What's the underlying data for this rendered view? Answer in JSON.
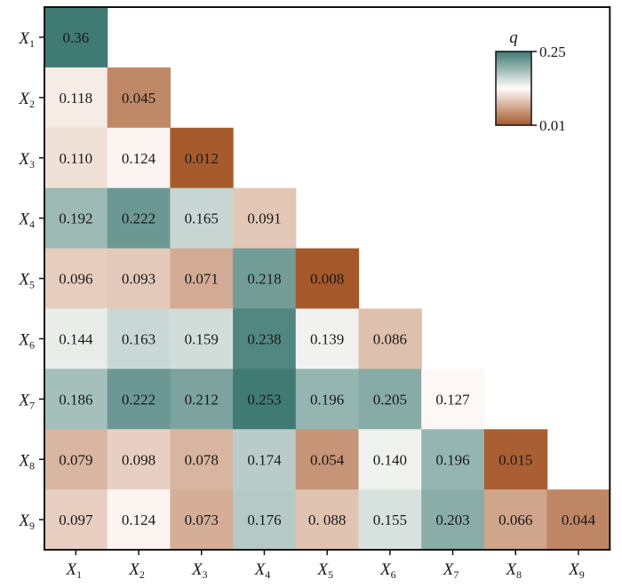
{
  "chart_data": {
    "type": "heatmap",
    "variables": [
      "X1",
      "X2",
      "X3",
      "X4",
      "X5",
      "X6",
      "X7",
      "X8",
      "X9"
    ],
    "tick_labels": [
      {
        "main": "X",
        "sub": "1"
      },
      {
        "main": "X",
        "sub": "2"
      },
      {
        "main": "X",
        "sub": "3"
      },
      {
        "main": "X",
        "sub": "4"
      },
      {
        "main": "X",
        "sub": "5"
      },
      {
        "main": "X",
        "sub": "6"
      },
      {
        "main": "X",
        "sub": "7"
      },
      {
        "main": "X",
        "sub": "8"
      },
      {
        "main": "X",
        "sub": "9"
      }
    ],
    "matrix": [
      [
        0.36
      ],
      [
        0.118,
        0.045
      ],
      [
        0.11,
        0.124,
        0.012
      ],
      [
        0.192,
        0.222,
        0.165,
        0.091
      ],
      [
        0.096,
        0.093,
        0.071,
        0.218,
        0.008
      ],
      [
        0.144,
        0.163,
        0.159,
        0.238,
        0.139,
        0.086
      ],
      [
        0.186,
        0.222,
        0.212,
        0.253,
        0.196,
        0.205,
        0.127
      ],
      [
        0.079,
        0.098,
        0.078,
        0.174,
        0.054,
        0.14,
        0.196,
        0.015
      ],
      [
        0.097,
        0.124,
        0.073,
        0.176,
        0.088,
        0.155,
        0.203,
        0.066,
        0.044
      ]
    ],
    "cell_labels": [
      [
        "0.36"
      ],
      [
        "0.118",
        "0.045"
      ],
      [
        "0.110",
        "0.124",
        "0.012"
      ],
      [
        "0.192",
        "0.222",
        "0.165",
        "0.091"
      ],
      [
        "0.096",
        "0.093",
        "0.071",
        "0.218",
        "0.008"
      ],
      [
        "0.144",
        "0.163",
        "0.159",
        "0.238",
        "0.139",
        "0.086"
      ],
      [
        "0.186",
        "0.222",
        "0.212",
        "0.253",
        "0.196",
        "0.205",
        "0.127"
      ],
      [
        "0.079",
        "0.098",
        "0.078",
        "0.174",
        "0.054",
        "0.140",
        "0.196",
        "0.015"
      ],
      [
        "0.097",
        "0.124",
        "0.073",
        "0.176",
        "0. 088",
        "0.155",
        "0.203",
        "0.066",
        "0.044"
      ]
    ],
    "colorbar": {
      "title": "q",
      "min": 0.01,
      "max": 0.25,
      "min_label": "0.01",
      "max_label": "0.25",
      "placement": "top-right"
    },
    "colormap": {
      "low": "#A5582A",
      "mid": "#FFFCFA",
      "high": "#3F7A73"
    },
    "grid": false
  }
}
